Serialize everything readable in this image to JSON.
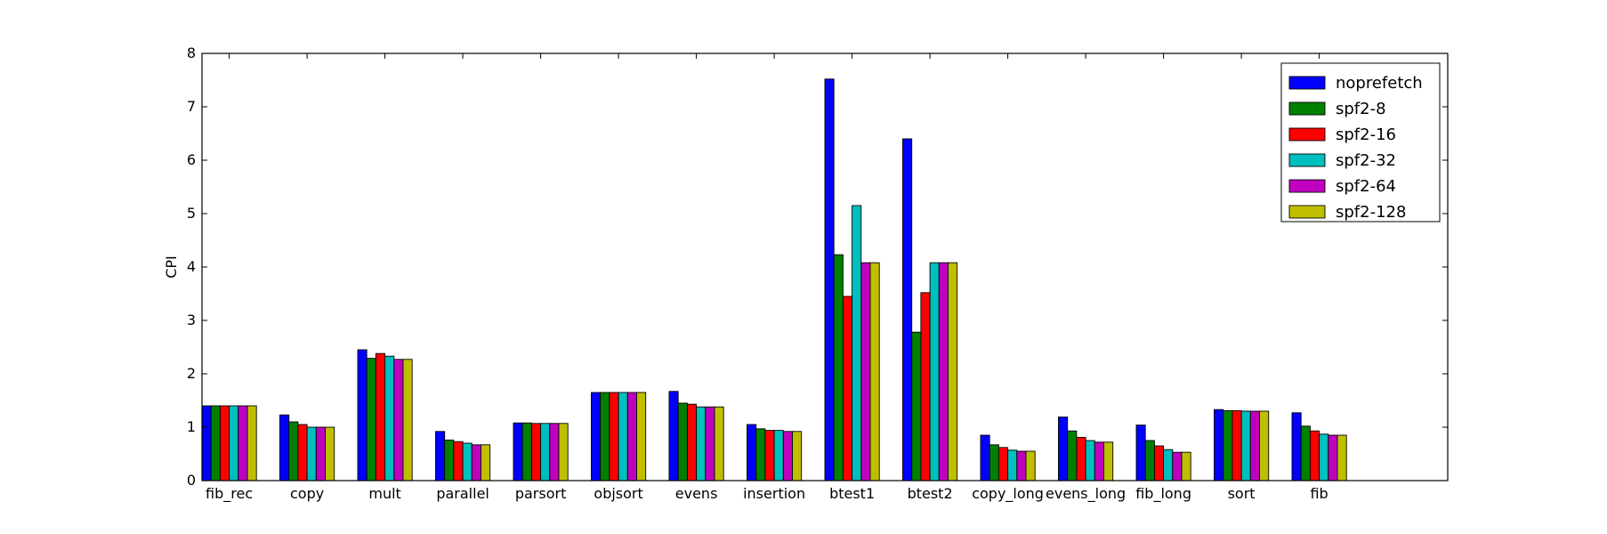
{
  "chart_data": {
    "type": "bar",
    "title": "",
    "xlabel": "",
    "ylabel": "CPI",
    "ylim": [
      0,
      8
    ],
    "yticks": [
      0,
      1,
      2,
      3,
      4,
      5,
      6,
      7,
      8
    ],
    "grid": false,
    "legend_position": "top-right",
    "categories": [
      "fib_rec",
      "copy",
      "mult",
      "parallel",
      "parsort",
      "objsort",
      "evens",
      "insertion",
      "btest1",
      "btest2",
      "copy_long",
      "evens_long",
      "fib_long",
      "sort",
      "fib"
    ],
    "series": [
      {
        "name": "noprefetch",
        "color": "#0000ff",
        "values": [
          1.4,
          1.23,
          2.45,
          0.92,
          1.08,
          1.65,
          1.67,
          1.05,
          7.52,
          6.4,
          0.85,
          1.19,
          1.04,
          1.33,
          1.27
        ]
      },
      {
        "name": "spf2-8",
        "color": "#008000",
        "values": [
          1.4,
          1.1,
          2.29,
          0.76,
          1.08,
          1.65,
          1.45,
          0.97,
          4.23,
          2.78,
          0.67,
          0.93,
          0.75,
          1.31,
          1.02
        ]
      },
      {
        "name": "spf2-16",
        "color": "#ff0000",
        "values": [
          1.4,
          1.05,
          2.38,
          0.73,
          1.07,
          1.65,
          1.43,
          0.94,
          3.45,
          3.52,
          0.62,
          0.81,
          0.65,
          1.31,
          0.93
        ]
      },
      {
        "name": "spf2-32",
        "color": "#00bfbf",
        "values": [
          1.4,
          1.0,
          2.33,
          0.7,
          1.07,
          1.65,
          1.38,
          0.94,
          5.15,
          4.08,
          0.57,
          0.75,
          0.58,
          1.3,
          0.87
        ]
      },
      {
        "name": "spf2-64",
        "color": "#bf00bf",
        "values": [
          1.4,
          1.0,
          2.27,
          0.67,
          1.07,
          1.65,
          1.38,
          0.92,
          4.08,
          4.08,
          0.55,
          0.72,
          0.53,
          1.3,
          0.85
        ]
      },
      {
        "name": "spf2-128",
        "color": "#bfbf00",
        "values": [
          1.4,
          1.0,
          2.27,
          0.67,
          1.07,
          1.65,
          1.38,
          0.92,
          4.08,
          4.08,
          0.55,
          0.72,
          0.53,
          1.3,
          0.85
        ]
      }
    ]
  }
}
